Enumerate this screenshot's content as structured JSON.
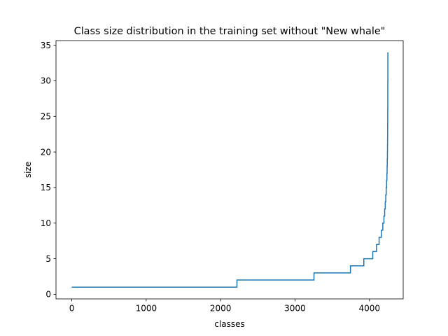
{
  "chart_data": {
    "type": "line",
    "title": "Class size distribution in the training set without \"New whale\"",
    "xlabel": "classes",
    "ylabel": "size",
    "xlim": [
      -212,
      4454
    ],
    "ylim": [
      -0.65,
      35.65
    ],
    "xticks": [
      0,
      1000,
      2000,
      3000,
      4000
    ],
    "yticks": [
      0,
      5,
      10,
      15,
      20,
      25,
      30,
      35
    ],
    "grid": false,
    "series": [
      {
        "color": "#1f77b4",
        "step": true,
        "x": [
          0,
          2220,
          3255,
          3745,
          3925,
          4045,
          4095,
          4130,
          4160,
          4180,
          4195,
          4205,
          4213,
          4220,
          4226,
          4231,
          4235,
          4238,
          4240,
          4242,
          4243,
          4244,
          4245,
          4246,
          4247,
          4248
        ],
        "y": [
          1,
          2,
          3,
          4,
          5,
          6,
          7,
          8,
          9,
          10,
          11,
          12,
          13,
          14,
          15,
          16,
          17,
          18,
          19,
          20,
          21,
          22,
          24,
          26,
          30,
          34
        ]
      }
    ]
  }
}
